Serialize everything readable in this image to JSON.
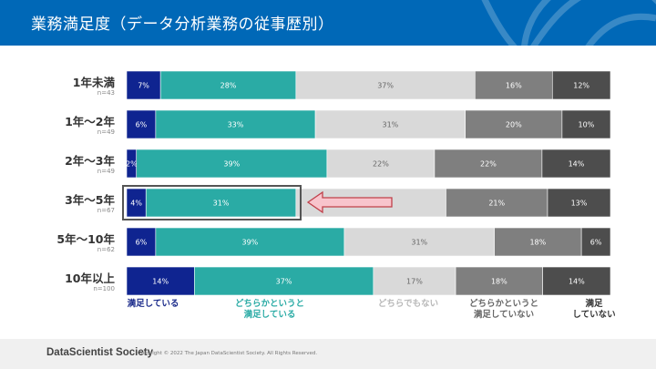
{
  "header": {
    "title": "業務満足度（データ分析業務の従事歴別）"
  },
  "chart_data": {
    "type": "bar",
    "orientation": "horizontal-stacked-100",
    "categories": [
      "1年未満",
      "1年～2年",
      "2年～3年",
      "3年～5年",
      "5年～10年",
      "10年以上"
    ],
    "sample_sizes": [
      "n=43",
      "n=49",
      "n=49",
      "n=67",
      "n=62",
      "n=100"
    ],
    "series": [
      {
        "name": "満足している",
        "color": "#0f2490",
        "values": [
          7,
          6,
          2,
          4,
          6,
          14
        ]
      },
      {
        "name": "どちらかというと\n満足している",
        "color": "#2aaba5",
        "values": [
          28,
          33,
          39,
          31,
          39,
          37
        ]
      },
      {
        "name": "どちらでもない",
        "color": "#d9d9d9",
        "values": [
          37,
          31,
          22,
          31,
          31,
          17
        ]
      },
      {
        "name": "どちらかというと\n満足していない",
        "color": "#7f7f7f",
        "values": [
          16,
          20,
          22,
          21,
          18,
          18
        ]
      },
      {
        "name": "満足\nしていない",
        "color": "#4d4d4d",
        "values": [
          12,
          10,
          14,
          13,
          6,
          14
        ]
      }
    ],
    "legend_text_colors": [
      "#1a2a8a",
      "#2aaba5",
      "#b8b8b8",
      "#666666",
      "#333333"
    ],
    "value_format": "percent",
    "highlighted_category": "3年～5年",
    "legend_position": "bottom"
  },
  "footer": {
    "brand": "DataScientist Society",
    "copyright": "Copyright © 2022 The Japan DataScientist Society. All Rights Reserved."
  }
}
